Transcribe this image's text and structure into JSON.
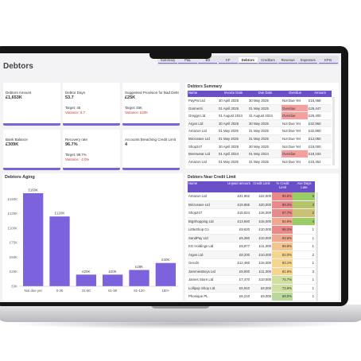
{
  "header": {
    "title": "Debtors",
    "tabs": [
      "Summary",
      "P&L",
      "BS",
      "CF",
      "Debtors",
      "Creditors",
      "Revenue",
      "Expenses",
      "KPIs"
    ],
    "active_tab": 4
  },
  "cards": [
    {
      "label": "Debtors Amount",
      "value": "£1,653K"
    },
    {
      "label": "Debtor Days",
      "value": "53.7",
      "target": "Target: 45",
      "variance": "Variance: 8.7"
    },
    {
      "label": "Suggested Provision for Bad Debt",
      "value": "£25K",
      "target": "Target: £5K",
      "variance": "Variance: £20K"
    },
    {
      "label": "Bank Balance",
      "value": "£309K"
    },
    {
      "label": "Recovery rate",
      "value": "96.7%",
      "target": "Target: 98.7%",
      "variance": "Variance: -2.0%"
    },
    {
      "label": "Accounts Breaching Credit Limit",
      "value": "4"
    }
  ],
  "debtors_summary": {
    "title": "Debtors Summary",
    "columns": [
      "Name",
      "Invoice Date",
      "Due Date",
      "Overdue",
      "Amount"
    ],
    "rows": [
      [
        "PayPal Ltd",
        "30 April 2025",
        "30 May 2025",
        "Not Due Yet",
        "£15,468"
      ],
      [
        "Garmenti",
        "01 April 2025",
        "01 May 2025",
        "Overdue",
        "£25,447"
      ],
      [
        "Greggs Ltd",
        "01 August 2024",
        "31 August 2024",
        "Overdue",
        "£25,400"
      ],
      [
        "Argos Ltd",
        "30 April 2025",
        "30 May 2025",
        "Not Due Yet",
        "£32,960"
      ],
      [
        "Amazon Ltd",
        "01 May 2025",
        "31 May 2025",
        "Not Due Yet",
        "£32,960"
      ],
      [
        "Microsave Ltd",
        "01 May 2025",
        "31 May 2025",
        "Not Due Yet",
        "£12,050"
      ],
      [
        "Shop247",
        "30 April 2025",
        "30 May 2025",
        "Not Due Yet",
        "£18,000"
      ],
      [
        "Menswear Ltd",
        "01 April 2024",
        "01 May 2024",
        "Overdue",
        "£18,193"
      ],
      [
        "Amazon Ltd",
        "01 May 2025",
        "31 May 2025",
        "Not Due Yet",
        "£15,462"
      ]
    ],
    "status_colors": [
      "#ffffff",
      "#f3a0a0",
      "#f3a0a0",
      "#ffffff",
      "#ffffff",
      "#ffffff",
      "#ffffff",
      "#f3a0a0",
      "#ffffff"
    ]
  },
  "chart_data": {
    "type": "bar",
    "title": "Debtors Aging",
    "categories": [
      "Not due yet",
      "0-30",
      "31-60",
      "61-90",
      "91-120",
      "180+"
    ],
    "values": [
      160,
      120,
      20,
      20,
      28,
      40
    ],
    "value_labels": [
      "£160K",
      "£120K",
      "£20K",
      "£20K",
      "£28K",
      "£40K"
    ],
    "ylim": [
      0,
      175
    ],
    "yticks": [
      {
        "value": 0,
        "label": "£0K"
      },
      {
        "value": 25,
        "label": "£25K"
      },
      {
        "value": 50,
        "label": "£50K"
      },
      {
        "value": 75,
        "label": "£75K"
      },
      {
        "value": 100,
        "label": "£100K"
      },
      {
        "value": 125,
        "label": "£125K"
      },
      {
        "value": 150,
        "label": "£150K"
      }
    ],
    "color": "#7c62dc",
    "grid": false
  },
  "near_limit": {
    "title": "Debtors Near Credit Limit",
    "columns": [
      "Name",
      "Unpaid amount",
      "Credit Limit",
      "% Credit Limit",
      "Ave Days Late"
    ],
    "rows": [
      [
        "Amazon Ltd",
        "£21,962",
        "£22,000",
        "99.8%",
        "5"
      ],
      [
        "Microsave Ltd",
        "£19,865",
        "£20,000",
        "99.3%",
        "3"
      ],
      [
        "Shop247",
        "£15,624",
        "£16,000",
        "97.7%",
        "2"
      ],
      [
        "BigShopping Ltd",
        "£13,940",
        "£15,000",
        "92.9%",
        "4"
      ],
      [
        "LittleShop Co",
        "£9,620",
        "£10,000",
        "96.2%",
        "1"
      ],
      [
        "SandPay Ltd",
        "£9,360",
        "£10,000",
        "93.6%",
        "1"
      ],
      [
        "KG Holdings Ltd",
        "£9,877",
        "£11,000",
        "89.8%",
        "1"
      ],
      [
        "Argos Ltd",
        "£8,200",
        "£10,000",
        "82.0%",
        "2"
      ],
      [
        "Gecchi",
        "£12,460",
        "£15,000",
        "83.1%",
        "1"
      ],
      [
        "JammiesBoys Ltd",
        "£9,000",
        "£11,000",
        "81.8%",
        "3"
      ],
      [
        "James Store Ltd",
        "£7,470",
        "£10,000",
        "74.7%",
        "1"
      ],
      [
        "Lollipop Shop Ltd",
        "£5,910",
        "£8,000",
        "73.9%",
        "1"
      ],
      [
        "Phonique PL",
        "£6,210",
        "£9,000",
        "69.0%",
        "1"
      ]
    ],
    "pct_colors": [
      "#e8898a",
      "#e8898a",
      "#e8898a",
      "#f0a98f",
      "#e8898a",
      "#f0a98f",
      "#f3c590",
      "#f6d68f",
      "#f6d68f",
      "#f6d68f",
      "#cfe0a0",
      "#cfe0a0",
      "#b9d99c"
    ],
    "late_colors": [
      "#9ccc65",
      "#b5c46a",
      "#cbbf74",
      "#9ccc65",
      "#ffffff",
      "#ffffff",
      "#ffffff",
      "#ffffff",
      "#ffffff",
      "#ffffff",
      "#ffffff",
      "#ffffff",
      "#ffffff"
    ]
  }
}
